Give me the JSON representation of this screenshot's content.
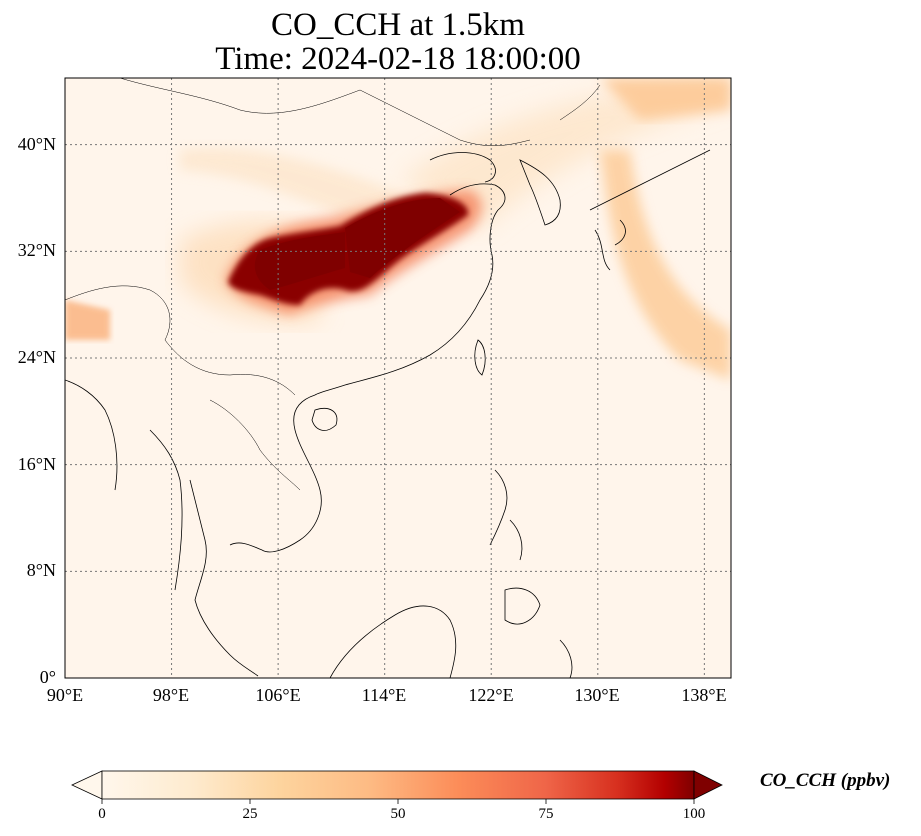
{
  "title_line1": "CO_CCH at 1.5km",
  "title_line2": "Time: 2024-02-18 18:00:00",
  "map": {
    "lon_range": [
      90,
      140
    ],
    "lat_range": [
      0,
      45
    ],
    "gridlines": true,
    "lat_ticks": [
      "0°",
      "8°N",
      "16°N",
      "24°N",
      "32°N",
      "40°N"
    ],
    "lat_tick_values": [
      0,
      8,
      16,
      24,
      32,
      40
    ],
    "lon_ticks": [
      "90°E",
      "98°E",
      "106°E",
      "114°E",
      "122°E",
      "130°E",
      "138°E"
    ],
    "lon_tick_values": [
      90,
      98,
      106,
      114,
      122,
      130,
      138
    ],
    "plume_color_high": "#7f0000",
    "background_color": "#fff5eb"
  },
  "colorbar": {
    "label": "CO_CCH (ppbv)",
    "ticks": [
      "0",
      "25",
      "50",
      "75",
      "100"
    ],
    "min": 0,
    "max": 100,
    "colormap": "OrRd",
    "extend": "both"
  }
}
